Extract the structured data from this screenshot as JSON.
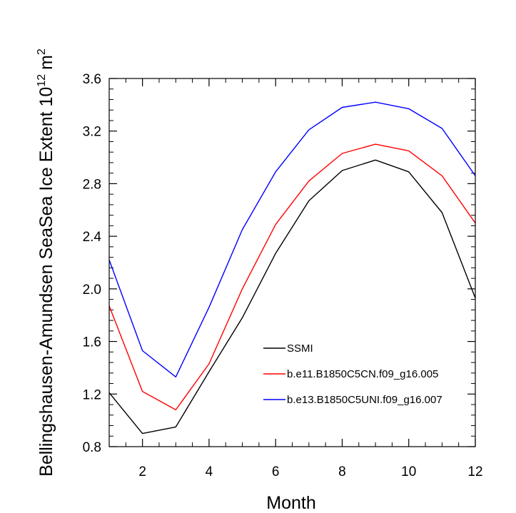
{
  "chart_data": {
    "type": "line",
    "title": "",
    "xlabel": "Month",
    "ylabel_main": "Bellingshausen-Amundsen SeaSea Ice Extent 10",
    "ylabel_sup": "12",
    "ylabel_unit": "m",
    "ylabel_unit_sup": "2",
    "xlim": [
      1,
      12
    ],
    "ylim": [
      0.8,
      3.6
    ],
    "x_ticks": [
      2,
      4,
      6,
      8,
      10,
      12
    ],
    "x_tick_labels": [
      "2",
      "4",
      "6",
      "8",
      "10",
      "12"
    ],
    "y_ticks": [
      0.8,
      1.2,
      1.6,
      2.0,
      2.4,
      2.8,
      3.2,
      3.6
    ],
    "y_tick_labels": [
      "0.8",
      "1.2",
      "1.6",
      "2.0",
      "2.4",
      "2.8",
      "3.2",
      "3.6"
    ],
    "grid": false,
    "legend_position": "lower-right",
    "x": [
      1,
      2,
      3,
      4,
      5,
      6,
      7,
      8,
      9,
      10,
      11,
      12
    ],
    "series": [
      {
        "name": "SSMI",
        "color": "#000000",
        "values": [
          1.21,
          0.9,
          0.95,
          1.37,
          1.78,
          2.27,
          2.67,
          2.9,
          2.98,
          2.89,
          2.58,
          1.93
        ]
      },
      {
        "name": "b.e11.B1850C5CN.f09_g16.005",
        "color": "#ff0000",
        "values": [
          1.87,
          1.22,
          1.08,
          1.43,
          2.0,
          2.49,
          2.82,
          3.03,
          3.1,
          3.05,
          2.86,
          2.5
        ]
      },
      {
        "name": "b.e13.B1850C5UNI.f09_g16.007",
        "color": "#0000ff",
        "values": [
          2.22,
          1.53,
          1.33,
          1.86,
          2.45,
          2.89,
          3.21,
          3.38,
          3.42,
          3.37,
          3.22,
          2.86
        ]
      }
    ]
  }
}
